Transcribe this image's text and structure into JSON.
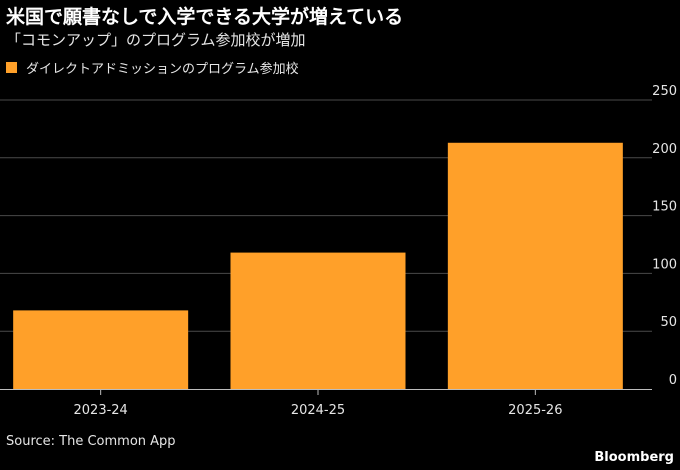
{
  "header": {
    "title": "米国で願書なしで入学できる大学が増えている",
    "subtitle": "「コモンアップ」のプログラム参加校が増加"
  },
  "footer": {
    "source": "Source: The Common App",
    "brand": "Bloomberg"
  },
  "colors": {
    "background": "#000000",
    "bar": "#ffa029",
    "grid": "#4a4a4a",
    "text": "#e6e6e6"
  },
  "chart_data": {
    "type": "bar",
    "title": "米国で願書なしで入学できる大学が増えている",
    "subtitle": "「コモンアップ」のプログラム参加校が増加",
    "categories": [
      "2023-24",
      "2024-25",
      "2025-26"
    ],
    "series": [
      {
        "name": "ダイレクトアドミッションのプログラム参加校",
        "values": [
          68,
          118,
          213
        ]
      }
    ],
    "ylim": [
      0,
      250
    ],
    "yticks": [
      "250",
      "200",
      "150",
      "100",
      "50",
      "0"
    ],
    "ytick_values": [
      250,
      200,
      150,
      100,
      50,
      0
    ],
    "y_axis_side": "right",
    "grid": true,
    "legend_position": "top-left",
    "xlabel": "",
    "ylabel": ""
  }
}
